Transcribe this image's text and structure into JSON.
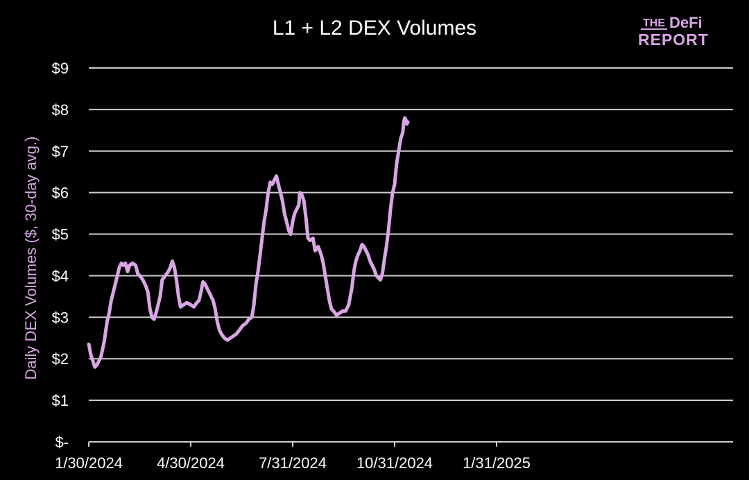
{
  "logo": {
    "top": "THE",
    "brand": "DeFi",
    "bottom": "REPORT"
  },
  "colors": {
    "background": "#000000",
    "line": "#d7a6e3",
    "grid": "#d0d0d0",
    "text": "#ffffff",
    "ylabel": "#d7a6e3"
  },
  "chart_data": {
    "type": "line",
    "title": "L1 + L2 DEX Volumes",
    "xlabel": "",
    "ylabel": "Daily DEX Volumes ($, 30-day avg.)",
    "ylim": [
      0,
      9
    ],
    "grid": true,
    "y_tick_labels": [
      "$-",
      "$1",
      "$2",
      "$3",
      "$4",
      "$5",
      "$6",
      "$7",
      "$8",
      "$9"
    ],
    "x_tick_labels": [
      "1/30/2024",
      "4/30/2024",
      "7/31/2024",
      "10/31/2024",
      "1/31/2025"
    ],
    "series": [
      {
        "values": [
          [
            0,
            2.35
          ],
          [
            0.02,
            2.1
          ],
          [
            0.04,
            1.95
          ],
          [
            0.06,
            1.8
          ],
          [
            0.08,
            1.85
          ],
          [
            0.1,
            1.95
          ],
          [
            0.12,
            2.05
          ],
          [
            0.15,
            2.4
          ],
          [
            0.18,
            2.9
          ],
          [
            0.2,
            3.1
          ],
          [
            0.22,
            3.4
          ],
          [
            0.25,
            3.7
          ],
          [
            0.28,
            4.0
          ],
          [
            0.3,
            4.2
          ],
          [
            0.32,
            4.3
          ],
          [
            0.34,
            4.25
          ],
          [
            0.36,
            4.3
          ],
          [
            0.38,
            4.1
          ],
          [
            0.4,
            4.25
          ],
          [
            0.43,
            4.3
          ],
          [
            0.46,
            4.25
          ],
          [
            0.48,
            4.05
          ],
          [
            0.5,
            4.0
          ],
          [
            0.53,
            3.9
          ],
          [
            0.56,
            3.75
          ],
          [
            0.58,
            3.6
          ],
          [
            0.6,
            3.2
          ],
          [
            0.62,
            3.0
          ],
          [
            0.64,
            2.95
          ],
          [
            0.66,
            3.1
          ],
          [
            0.68,
            3.3
          ],
          [
            0.7,
            3.5
          ],
          [
            0.72,
            3.9
          ],
          [
            0.75,
            4.0
          ],
          [
            0.78,
            4.1
          ],
          [
            0.8,
            4.2
          ],
          [
            0.82,
            4.35
          ],
          [
            0.84,
            4.2
          ],
          [
            0.86,
            3.9
          ],
          [
            0.88,
            3.5
          ],
          [
            0.9,
            3.25
          ],
          [
            0.93,
            3.3
          ],
          [
            0.96,
            3.35
          ],
          [
            1.0,
            3.3
          ],
          [
            1.03,
            3.25
          ],
          [
            1.06,
            3.35
          ],
          [
            1.08,
            3.4
          ],
          [
            1.1,
            3.6
          ],
          [
            1.12,
            3.85
          ],
          [
            1.14,
            3.8
          ],
          [
            1.16,
            3.7
          ],
          [
            1.18,
            3.6
          ],
          [
            1.2,
            3.5
          ],
          [
            1.22,
            3.4
          ],
          [
            1.24,
            3.2
          ],
          [
            1.26,
            2.9
          ],
          [
            1.28,
            2.7
          ],
          [
            1.3,
            2.6
          ],
          [
            1.33,
            2.5
          ],
          [
            1.36,
            2.45
          ],
          [
            1.39,
            2.5
          ],
          [
            1.42,
            2.55
          ],
          [
            1.45,
            2.6
          ],
          [
            1.48,
            2.7
          ],
          [
            1.51,
            2.8
          ],
          [
            1.54,
            2.85
          ],
          [
            1.57,
            2.95
          ],
          [
            1.6,
            3.0
          ],
          [
            1.62,
            3.3
          ],
          [
            1.64,
            3.8
          ],
          [
            1.66,
            4.1
          ],
          [
            1.68,
            4.5
          ],
          [
            1.7,
            4.9
          ],
          [
            1.72,
            5.3
          ],
          [
            1.74,
            5.6
          ],
          [
            1.76,
            6.0
          ],
          [
            1.78,
            6.25
          ],
          [
            1.8,
            6.2
          ],
          [
            1.82,
            6.3
          ],
          [
            1.84,
            6.4
          ],
          [
            1.86,
            6.2
          ],
          [
            1.88,
            6.0
          ],
          [
            1.9,
            5.8
          ],
          [
            1.92,
            5.5
          ],
          [
            1.94,
            5.3
          ],
          [
            1.96,
            5.1
          ],
          [
            1.98,
            5.0
          ],
          [
            2.0,
            5.3
          ],
          [
            2.02,
            5.5
          ],
          [
            2.04,
            5.6
          ],
          [
            2.06,
            5.7
          ],
          [
            2.07,
            6.0
          ],
          [
            2.09,
            5.95
          ],
          [
            2.11,
            5.8
          ],
          [
            2.13,
            5.4
          ],
          [
            2.15,
            4.9
          ],
          [
            2.17,
            4.85
          ],
          [
            2.2,
            4.9
          ],
          [
            2.22,
            4.6
          ],
          [
            2.25,
            4.7
          ],
          [
            2.28,
            4.5
          ],
          [
            2.3,
            4.3
          ],
          [
            2.32,
            4.0
          ],
          [
            2.34,
            3.7
          ],
          [
            2.36,
            3.4
          ],
          [
            2.38,
            3.2
          ],
          [
            2.4,
            3.15
          ],
          [
            2.43,
            3.05
          ],
          [
            2.46,
            3.1
          ],
          [
            2.49,
            3.15
          ],
          [
            2.52,
            3.15
          ],
          [
            2.55,
            3.3
          ],
          [
            2.58,
            3.7
          ],
          [
            2.6,
            4.1
          ],
          [
            2.62,
            4.35
          ],
          [
            2.64,
            4.5
          ],
          [
            2.66,
            4.6
          ],
          [
            2.68,
            4.75
          ],
          [
            2.7,
            4.7
          ],
          [
            2.72,
            4.6
          ],
          [
            2.74,
            4.5
          ],
          [
            2.76,
            4.35
          ],
          [
            2.78,
            4.25
          ],
          [
            2.8,
            4.15
          ],
          [
            2.82,
            4.0
          ],
          [
            2.84,
            3.95
          ],
          [
            2.86,
            3.9
          ],
          [
            2.88,
            4.05
          ],
          [
            2.9,
            4.4
          ],
          [
            2.92,
            4.7
          ],
          [
            2.94,
            5.1
          ],
          [
            2.96,
            5.6
          ],
          [
            2.98,
            6.0
          ],
          [
            3.0,
            6.2
          ],
          [
            3.02,
            6.7
          ],
          [
            3.04,
            7.0
          ],
          [
            3.06,
            7.3
          ],
          [
            3.08,
            7.45
          ],
          [
            3.09,
            7.7
          ],
          [
            3.1,
            7.8
          ],
          [
            3.11,
            7.75
          ],
          [
            3.12,
            7.65
          ],
          [
            3.13,
            7.7
          ]
        ]
      }
    ]
  }
}
